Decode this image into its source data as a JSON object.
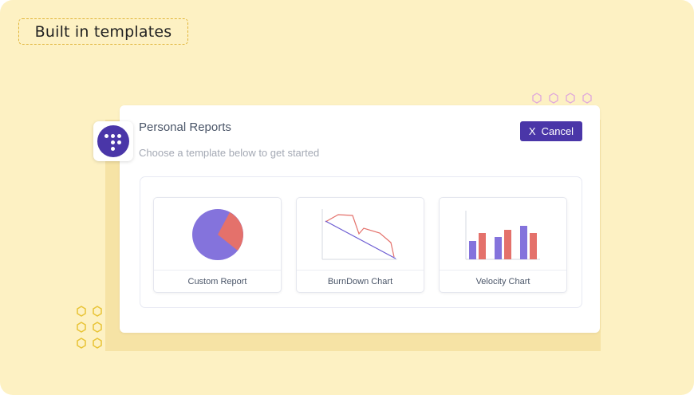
{
  "banner": {
    "label": "Built in templates"
  },
  "dialog": {
    "title": "Personal Reports",
    "subtitle": "Choose a template below to get started",
    "cancel_icon": "X",
    "cancel_label": "Cancel"
  },
  "templates": [
    {
      "label": "Custom Report",
      "preview_icon": "pie-chart-icon"
    },
    {
      "label": "BurnDown Chart",
      "preview_icon": "burndown-chart-icon"
    },
    {
      "label": "Velocity Chart",
      "preview_icon": "velocity-bar-chart-icon"
    }
  ],
  "colors": {
    "background": "#fdf1c3",
    "accent": "#4a36a8",
    "purple": "#8473dc",
    "red": "#e4716b",
    "hex_yellow": "#e8c334",
    "hex_pink": "#dfa6dc"
  }
}
